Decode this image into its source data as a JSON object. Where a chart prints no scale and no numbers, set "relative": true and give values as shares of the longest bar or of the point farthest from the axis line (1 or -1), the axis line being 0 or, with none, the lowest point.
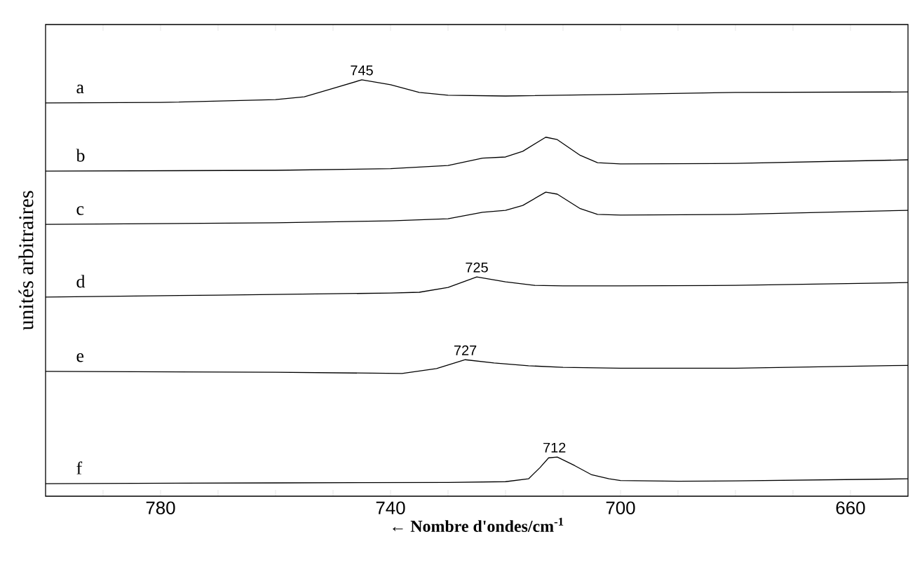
{
  "chart_data": {
    "type": "line",
    "relative": true,
    "xlabel": "← Nombre d'ondes/cm$^{-1}$",
    "ylabel": "unités arbitraires",
    "xlim": [
      800,
      650
    ],
    "xticks": [
      {
        "value": 790,
        "label": null
      },
      780,
      {
        "value": 770,
        "label": null
      },
      {
        "value": 760,
        "label": null
      },
      {
        "value": 750,
        "label": null
      },
      740,
      {
        "value": 730,
        "label": null
      },
      {
        "value": 720,
        "label": null
      },
      {
        "value": 710,
        "label": null
      },
      700,
      {
        "value": 690,
        "label": null
      },
      {
        "value": 680,
        "label": null
      },
      {
        "value": 670,
        "label": null
      },
      660
    ],
    "marker": "none",
    "series": [
      {
        "name": "a",
        "color": "#000000",
        "x": [
          800,
          780,
          760,
          755,
          750,
          745,
          740,
          735,
          730,
          720,
          700,
          680,
          650
        ],
        "values": [
          0.943,
          0.944,
          0.951,
          0.958,
          0.979,
          1.0,
          0.988,
          0.969,
          0.962,
          0.96,
          0.964,
          0.969,
          0.97
        ]
      },
      {
        "name": "b",
        "color": "#000000",
        "x": [
          800,
          760,
          740,
          730,
          724,
          720,
          717,
          713,
          711,
          707,
          704,
          700,
          680,
          650
        ],
        "values": [
          0.774,
          0.776,
          0.78,
          0.788,
          0.806,
          0.809,
          0.823,
          0.858,
          0.852,
          0.813,
          0.795,
          0.792,
          0.793,
          0.802
        ]
      },
      {
        "name": "c",
        "color": "#000000",
        "x": [
          800,
          760,
          740,
          730,
          724,
          720,
          717,
          713,
          711,
          707,
          704,
          700,
          680,
          650
        ],
        "values": [
          0.642,
          0.646,
          0.651,
          0.656,
          0.672,
          0.677,
          0.689,
          0.722,
          0.717,
          0.681,
          0.667,
          0.665,
          0.667,
          0.677
        ]
      },
      {
        "name": "d",
        "color": "#000000",
        "x": [
          800,
          770,
          740,
          735,
          730,
          725,
          720,
          715,
          710,
          700,
          680,
          650
        ],
        "values": [
          0.462,
          0.467,
          0.472,
          0.474,
          0.486,
          0.512,
          0.5,
          0.491,
          0.49,
          0.49,
          0.491,
          0.498
        ]
      },
      {
        "name": "e",
        "color": "#000000",
        "x": [
          800,
          760,
          738,
          732,
          727,
          722,
          716,
          710,
          700,
          680,
          650
        ],
        "values": [
          0.278,
          0.276,
          0.273,
          0.285,
          0.307,
          0.299,
          0.292,
          0.288,
          0.286,
          0.286,
          0.293
        ]
      },
      {
        "name": "f",
        "color": "#000000",
        "x": [
          800,
          760,
          730,
          720,
          716,
          714,
          712.5,
          711,
          708,
          705,
          702,
          700,
          690,
          680,
          650
        ],
        "values": [
          0.0,
          0.002,
          0.003,
          0.005,
          0.012,
          0.04,
          0.064,
          0.066,
          0.045,
          0.022,
          0.012,
          0.008,
          0.006,
          0.007,
          0.012
        ]
      }
    ],
    "annotations": [
      {
        "text": "745",
        "x": 745,
        "y": 1.0
      },
      {
        "text": "725",
        "x": 725,
        "y": 0.512
      },
      {
        "text": "727",
        "x": 727,
        "y": 0.307
      },
      {
        "text": "712",
        "x": 711.5,
        "y": 0.066
      }
    ]
  }
}
